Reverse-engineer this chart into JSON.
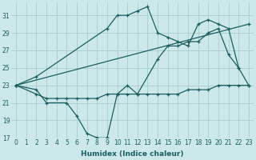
{
  "xlabel": "Humidex (Indice chaleur)",
  "bg_color": "#cce8e8",
  "grid_color": "#aacccc",
  "line_color": "#1a5f5f",
  "xlim": [
    -0.5,
    23.5
  ],
  "ylim": [
    17,
    32.5
  ],
  "yticks": [
    17,
    19,
    21,
    23,
    25,
    27,
    29,
    31
  ],
  "xticks": [
    0,
    1,
    2,
    3,
    4,
    5,
    6,
    7,
    8,
    9,
    10,
    11,
    12,
    13,
    14,
    15,
    16,
    17,
    18,
    19,
    20,
    21,
    22,
    23
  ],
  "lines": [
    {
      "x": [
        0,
        2,
        3,
        4,
        5,
        6,
        7,
        8,
        9,
        10,
        11,
        12,
        13,
        14,
        15,
        16,
        17,
        18,
        19,
        20,
        21,
        22,
        23
      ],
      "y": [
        23,
        22,
        21.5,
        21.5,
        21.5,
        21.5,
        21.5,
        21.5,
        22,
        22,
        22,
        22,
        22,
        22,
        22,
        22,
        22.5,
        22.5,
        22.5,
        23,
        23,
        23,
        23
      ]
    },
    {
      "x": [
        0,
        23
      ],
      "y": [
        23,
        30
      ]
    },
    {
      "x": [
        0,
        2,
        3,
        5,
        6,
        7,
        8,
        9,
        10,
        11,
        12,
        14,
        15,
        16,
        17,
        18,
        19,
        20,
        21,
        22
      ],
      "y": [
        23,
        22.5,
        21,
        21,
        19.5,
        17.5,
        17,
        17,
        22,
        23,
        22,
        26,
        27.5,
        27.5,
        28,
        28,
        29,
        29.5,
        26.5,
        25
      ]
    },
    {
      "x": [
        0,
        2,
        9,
        10,
        11,
        12,
        13,
        14,
        15,
        16,
        17,
        18,
        19,
        20,
        21,
        22,
        23
      ],
      "y": [
        23,
        24,
        29.5,
        31,
        31,
        31.5,
        32,
        29,
        28.5,
        28,
        27.5,
        30,
        30.5,
        30,
        29.5,
        25,
        23
      ]
    }
  ]
}
